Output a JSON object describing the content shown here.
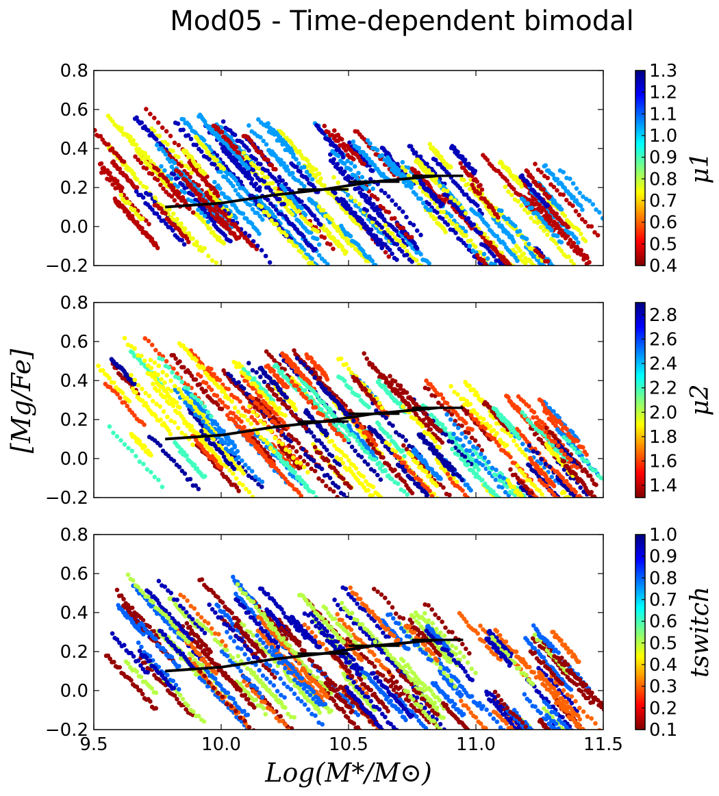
{
  "title": "Mod05 - Time-dependent bimodal",
  "ylabel": "[Mg/Fe]",
  "xlabel": "Log(M*/M⊙)",
  "chart_data": [
    {
      "type": "scatter",
      "panel": "top",
      "xlim": [
        9.5,
        11.5
      ],
      "ylim": [
        -0.2,
        0.8
      ],
      "x_ticks": [
        "9.5",
        "10.0",
        "10.5",
        "11.0",
        "11.5"
      ],
      "y_ticks": [
        "−0.2",
        "0.0",
        "0.2",
        "0.4",
        "0.6",
        "0.8"
      ],
      "colorbar": {
        "label": "μ1",
        "range": [
          0.4,
          1.3
        ],
        "ticks": [
          "0.4",
          "0.5",
          "0.6",
          "0.7",
          "0.8",
          "0.9",
          "1.0",
          "1.1",
          "1.2",
          "1.3"
        ]
      },
      "color_values": [
        0.45,
        0.75,
        1.05,
        1.25
      ],
      "mean_trend": {
        "x": [
          9.78,
          10.0,
          10.2,
          10.4,
          10.6,
          10.85
        ],
        "y": [
          0.1,
          0.12,
          0.16,
          0.19,
          0.23,
          0.26
        ]
      }
    },
    {
      "type": "scatter",
      "panel": "middle",
      "xlim": [
        9.5,
        11.5
      ],
      "ylim": [
        -0.2,
        0.8
      ],
      "x_ticks": [
        "9.5",
        "10.0",
        "10.5",
        "11.0",
        "11.5"
      ],
      "y_ticks": [
        "−0.2",
        "0.0",
        "0.2",
        "0.4",
        "0.6",
        "0.8"
      ],
      "colorbar": {
        "label": "μ2",
        "range": [
          1.3,
          2.9
        ],
        "ticks": [
          "1.4",
          "1.6",
          "1.8",
          "2.0",
          "2.2",
          "2.4",
          "2.6",
          "2.8"
        ]
      },
      "color_values": [
        1.35,
        1.6,
        1.9,
        2.2,
        2.5,
        2.85
      ],
      "mean_trend": {
        "x": [
          9.78,
          10.0,
          10.2,
          10.4,
          10.6,
          10.85
        ],
        "y": [
          0.1,
          0.12,
          0.16,
          0.19,
          0.23,
          0.26
        ]
      }
    },
    {
      "type": "scatter",
      "panel": "bottom",
      "xlim": [
        9.5,
        11.5
      ],
      "ylim": [
        -0.2,
        0.8
      ],
      "x_ticks": [
        "9.5",
        "10.0",
        "10.5",
        "11.0",
        "11.5"
      ],
      "y_ticks": [
        "−0.2",
        "0.0",
        "0.2",
        "0.4",
        "0.6",
        "0.8"
      ],
      "colorbar": {
        "label": "tswitch",
        "range": [
          0.1,
          1.0
        ],
        "ticks": [
          "0.1",
          "0.2",
          "0.3",
          "0.4",
          "0.5",
          "0.6",
          "0.7",
          "0.8",
          "0.9",
          "1.0"
        ]
      },
      "color_values": [
        0.12,
        0.3,
        0.5,
        0.8,
        0.95
      ],
      "mean_trend": {
        "x": [
          9.78,
          10.0,
          10.2,
          10.4,
          10.6,
          10.85
        ],
        "y": [
          0.1,
          0.12,
          0.16,
          0.19,
          0.23,
          0.26
        ]
      }
    }
  ]
}
